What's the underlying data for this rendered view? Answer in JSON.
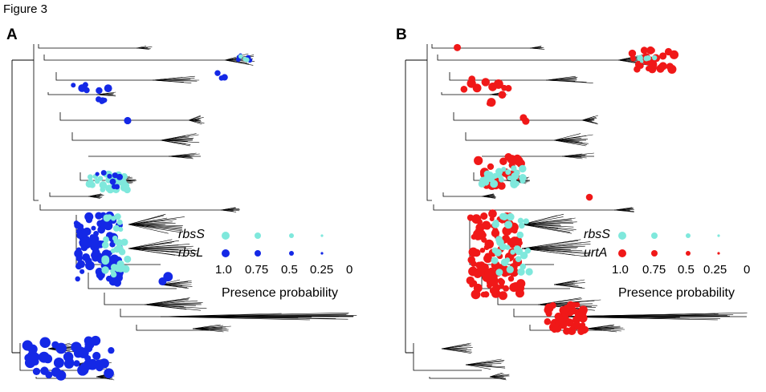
{
  "figure": {
    "title": "Figure 3"
  },
  "panels": [
    {
      "letter": "A",
      "gene_labels": [
        "rbsS",
        "rbsL"
      ],
      "colors": {
        "gene1": "#7fe8dc",
        "gene2": "#1428e6"
      },
      "ticks": [
        "1.0",
        "0.75",
        "0.5",
        "0.25",
        "0"
      ],
      "caption": "Presence probability"
    },
    {
      "letter": "B",
      "gene_labels": [
        "rbsS",
        "urtA"
      ],
      "colors": {
        "gene1": "#7fe8dc",
        "gene2": "#f01818"
      },
      "ticks": [
        "1.0",
        "0.75",
        "0.5",
        "0.25",
        "0"
      ],
      "caption": "Presence probability"
    }
  ]
}
